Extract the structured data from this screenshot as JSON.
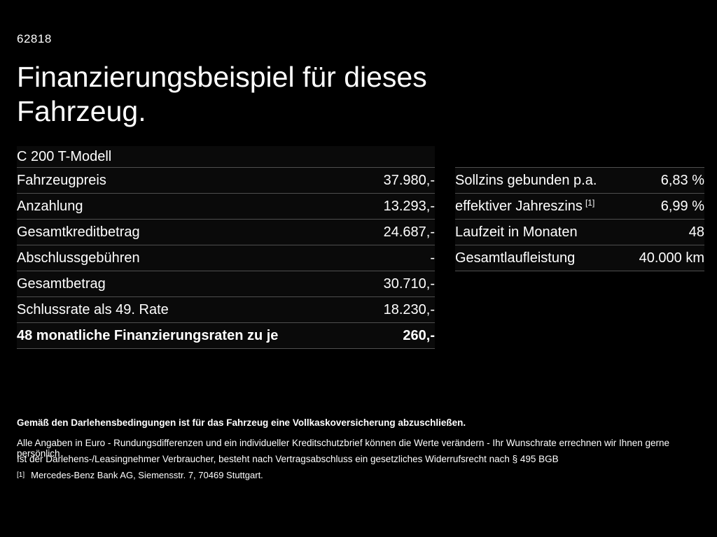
{
  "page": {
    "doc_number": "62818",
    "title": "Finanzierungsbeispiel für dieses Fahrzeug.",
    "model": "C 200 T-Modell"
  },
  "colors": {
    "background": "#000000",
    "text": "#ffffff",
    "divider": "#4f4f4f"
  },
  "finance_table": {
    "rows": [
      {
        "label": "Fahrzeugpreis",
        "value": "37.980,-"
      },
      {
        "label": "Anzahlung",
        "value": "13.293,-"
      },
      {
        "label": "Gesamtkreditbetrag",
        "value": "24.687,-"
      },
      {
        "label": "Abschlussgebühren",
        "value": "-"
      },
      {
        "label": "Gesamtbetrag",
        "value": "30.710,-"
      },
      {
        "label": "Schlussrate als 49. Rate",
        "value": "18.230,-"
      },
      {
        "label": "48 monatliche Finanzierungsraten zu je",
        "value": "260,-"
      }
    ]
  },
  "conditions_table": {
    "rows": [
      {
        "label": "Sollzins gebunden p.a.",
        "sup": "",
        "value": "6,83 %"
      },
      {
        "label": "effektiver Jahreszins",
        "sup": "[1]",
        "value": "6,99 %"
      },
      {
        "label": "Laufzeit in Monaten",
        "sup": "",
        "value": "48"
      },
      {
        "label": "Gesamtlaufleistung",
        "sup": "",
        "value": "40.000 km"
      }
    ]
  },
  "footer": {
    "insurance_note": "Gemäß den Darlehensbedingungen ist für das Fahrzeug eine Vollkaskoversicherung abzuschließen.",
    "note_line1": "Alle Angaben in Euro - Rundungsdifferenzen und ein individueller Kreditschutzbrief können die Werte verändern - Ihr Wunschrate errechnen wir Ihnen gerne persönlich",
    "note_line2": "Ist der Darlehens-/Leasingnehmer Verbraucher, besteht nach Vertragsabschluss ein gesetzliches Widerrufsrecht nach § 495 BGB",
    "footnote_marker": "[1]",
    "footnote_text": "Mercedes-Benz Bank AG, Siemensstr. 7, 70469 Stuttgart."
  }
}
